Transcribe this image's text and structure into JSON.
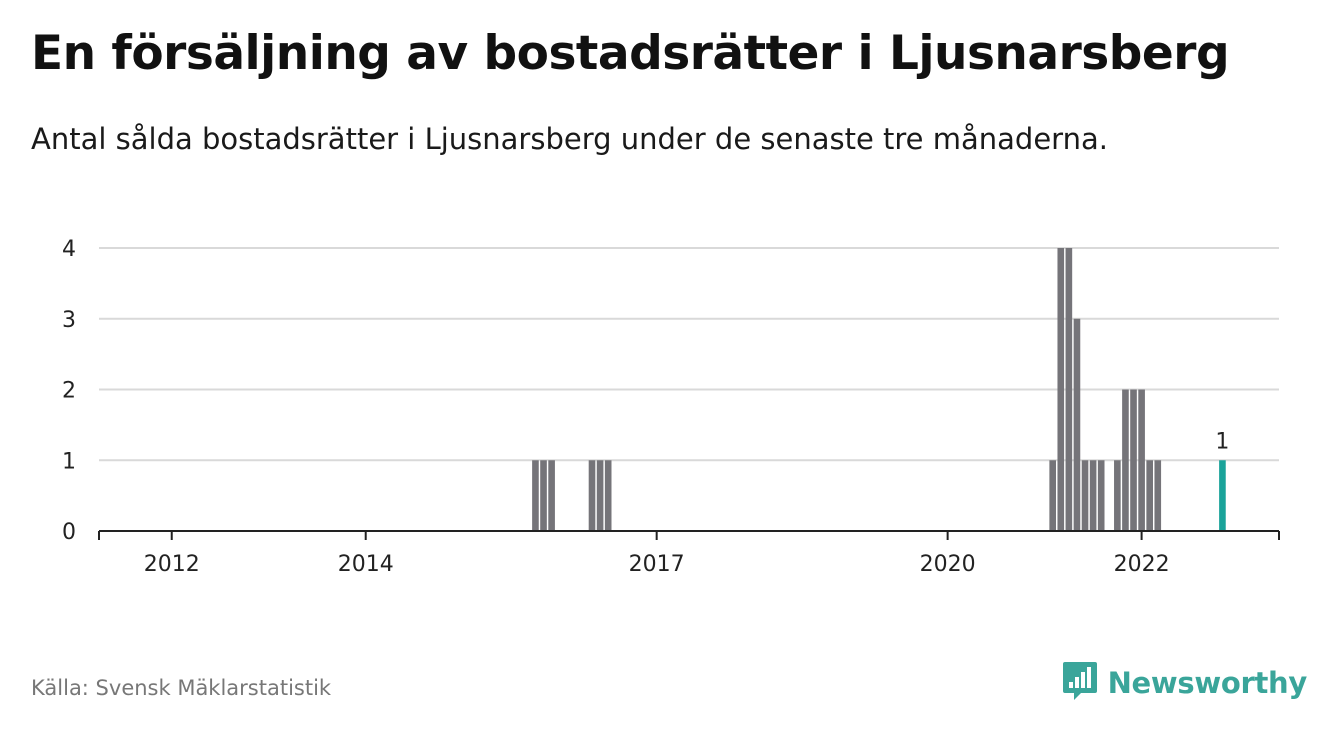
{
  "header": {
    "title": "En försäljning av bostadsrätter i Ljusnarsberg",
    "subtitle": "Antal sålda bostadsrätter i Ljusnarsberg under de senaste tre månaderna."
  },
  "footer": {
    "source": "Källa: Svensk Mäklarstatistik",
    "brand": "Newsworthy",
    "brand_icon": "newsworthy-logo-icon"
  },
  "colors": {
    "bar": "#757479",
    "highlight": "#1aa39a",
    "grid": "#d9d9d9",
    "axis": "#222222",
    "brand": "#3aa59a"
  },
  "chart_data": {
    "type": "bar",
    "title": "En försäljning av bostadsrätter i Ljusnarsberg",
    "subtitle": "Antal sålda bostadsrätter i Ljusnarsberg under de senaste tre månaderna.",
    "xlabel": "",
    "ylabel": "",
    "ylim": [
      0,
      4
    ],
    "yticks": [
      0,
      1,
      2,
      3,
      4
    ],
    "xticks": [
      {
        "label": "2012",
        "date": "2012-01"
      },
      {
        "label": "2014",
        "date": "2014-01"
      },
      {
        "label": "2017",
        "date": "2017-01"
      },
      {
        "label": "2020",
        "date": "2020-01"
      },
      {
        "label": "2022",
        "date": "2022-01"
      }
    ],
    "x_range": [
      "2011-04",
      "2023-06"
    ],
    "grid": true,
    "series": [
      {
        "values": [
          {
            "date": "2015-10",
            "value": 1
          },
          {
            "date": "2015-11",
            "value": 1
          },
          {
            "date": "2015-12",
            "value": 1
          },
          {
            "date": "2016-05",
            "value": 1
          },
          {
            "date": "2016-06",
            "value": 1
          },
          {
            "date": "2016-07",
            "value": 1
          },
          {
            "date": "2021-02",
            "value": 1
          },
          {
            "date": "2021-03",
            "value": 4
          },
          {
            "date": "2021-04",
            "value": 4
          },
          {
            "date": "2021-05",
            "value": 3
          },
          {
            "date": "2021-06",
            "value": 1
          },
          {
            "date": "2021-07",
            "value": 1
          },
          {
            "date": "2021-08",
            "value": 1
          },
          {
            "date": "2021-10",
            "value": 1
          },
          {
            "date": "2021-11",
            "value": 2
          },
          {
            "date": "2021-12",
            "value": 2
          },
          {
            "date": "2022-01",
            "value": 2
          },
          {
            "date": "2022-02",
            "value": 1
          },
          {
            "date": "2022-03",
            "value": 1
          },
          {
            "date": "2022-11",
            "value": 1,
            "highlight": true,
            "label": "1"
          }
        ]
      }
    ]
  }
}
